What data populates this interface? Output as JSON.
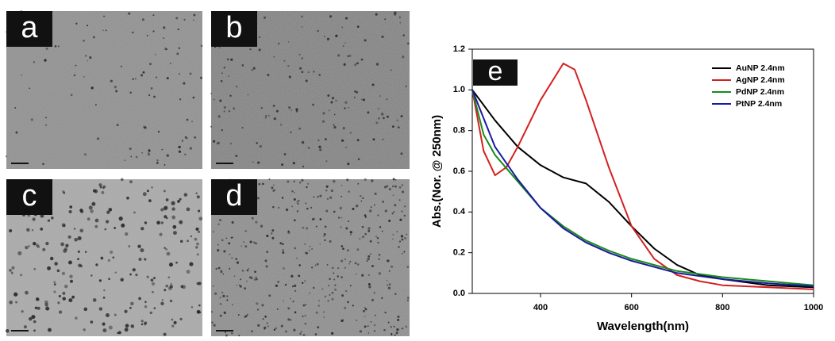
{
  "panels": [
    {
      "label": "a"
    },
    {
      "label": "b"
    },
    {
      "label": "c"
    },
    {
      "label": "d"
    }
  ],
  "chart_data": {
    "type": "line",
    "panel_label": "e",
    "xlabel": "Wavelength(nm)",
    "ylabel": "Abs.(Nor. @ 250nm)",
    "xlim": [
      250,
      1000
    ],
    "xticks": [
      400,
      600,
      800,
      1000
    ],
    "ylim": [
      0,
      1.2
    ],
    "yticks": [
      {
        "value": 0,
        "label": "0.0"
      },
      0.2,
      0.4,
      0.6,
      0.8,
      {
        "value": 1,
        "label": "1.0"
      },
      1.2
    ],
    "legend": "upper right",
    "series": [
      {
        "name": "AuNP 2.4nm",
        "color": "#000000",
        "x": [
          250,
          300,
          350,
          400,
          450,
          500,
          550,
          600,
          650,
          700,
          750,
          800,
          900,
          1000
        ],
        "values": [
          1.0,
          0.85,
          0.72,
          0.63,
          0.57,
          0.54,
          0.45,
          0.33,
          0.22,
          0.14,
          0.09,
          0.07,
          0.04,
          0.03
        ]
      },
      {
        "name": "AgNP 2.4nm",
        "color": "#d42020",
        "x": [
          250,
          275,
          300,
          325,
          350,
          400,
          450,
          475,
          500,
          550,
          600,
          650,
          700,
          750,
          800,
          900,
          1000
        ],
        "values": [
          1.0,
          0.7,
          0.58,
          0.62,
          0.72,
          0.95,
          1.13,
          1.1,
          0.95,
          0.62,
          0.33,
          0.17,
          0.09,
          0.06,
          0.04,
          0.03,
          0.02
        ]
      },
      {
        "name": "PdNP 2.4nm",
        "color": "#1a8a1a",
        "x": [
          250,
          275,
          300,
          350,
          400,
          450,
          500,
          550,
          600,
          700,
          800,
          900,
          1000
        ],
        "values": [
          1.0,
          0.78,
          0.68,
          0.55,
          0.42,
          0.33,
          0.26,
          0.21,
          0.17,
          0.11,
          0.08,
          0.06,
          0.04
        ]
      },
      {
        "name": "PtNP 2.4nm",
        "color": "#1a1aa0",
        "x": [
          250,
          300,
          350,
          400,
          450,
          500,
          550,
          600,
          700,
          800,
          900,
          1000
        ],
        "values": [
          1.0,
          0.72,
          0.56,
          0.42,
          0.32,
          0.25,
          0.2,
          0.16,
          0.1,
          0.07,
          0.05,
          0.035
        ]
      }
    ]
  }
}
